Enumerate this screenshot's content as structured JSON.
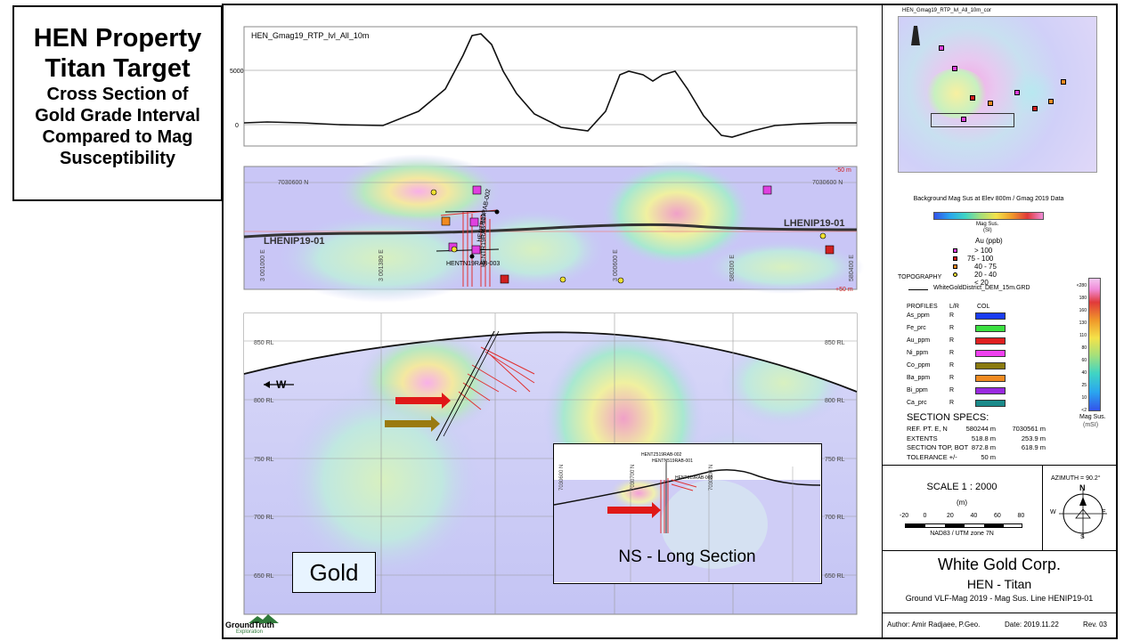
{
  "title": {
    "line1": "HEN Property",
    "line2": "Titan Target",
    "line3": "Cross Section of",
    "line4": "Gold Grade Interval",
    "line5": "Compared to Mag",
    "line6": "Susceptibility"
  },
  "profile_panel": {
    "name": "HEN_Gmag19_RTP_lvl_All_10m",
    "tick_top": "5000",
    "tick_bottom": "0"
  },
  "plan_panel": {
    "line_left": "LHENIP19-01",
    "line_right": "LHENIP19-01",
    "northing_left": "7030600 N",
    "northing_right": "7030600 N",
    "top_right": "-50 m",
    "bottom_right": "+50 m",
    "easting1": "3 001000 E",
    "easting2": "3 001380 E",
    "easting3": "3 000600 E",
    "easting4": "580300 E",
    "easting5": "580400 E",
    "hole1": "HENTR19RAB-002",
    "hole2": "HENTR19RAB-001",
    "hole3": "HENTN19RAB-003"
  },
  "section_panel": {
    "rl_850": "850 RL",
    "rl_800": "800 RL",
    "rl_750": "750 RL",
    "rl_700": "700 RL",
    "rl_650": "650 RL",
    "rl_850r": "850 RL",
    "rl_800r": "800 RL",
    "rl_750r": "750 RL",
    "rl_700r": "700 RL",
    "rl_650r": "650 RL",
    "direction": "W",
    "gold_label": "Gold",
    "inset_label": "NS - Long Section",
    "inset_hole1": "HENTZ519RAB-002",
    "inset_hole2": "HENTN519RAB-001",
    "inset_hole3": "HENT019RAB-003",
    "inset_n1": "7030600 N",
    "inset_n2": "7030700 N",
    "inset_n3": "7030800 N"
  },
  "side_panel": {
    "map_title": "HEN_Gmag19_RTP_lvl_All_10m_cor",
    "bg_caption": "Background Mag Sus at Elev 800m / Gmag 2019 Data",
    "mag_sus": "Mag Sus.",
    "si": "(SI)",
    "au_title": "Au (ppb)",
    "au_classes": [
      {
        "label": "> 100",
        "color": "#e040e0"
      },
      {
        "label": "75 - 100",
        "color": "#d02020"
      },
      {
        "label": "40 - 75",
        "color": "#f08a20"
      },
      {
        "label": "20 - 40",
        "color": "#f0e030"
      },
      {
        "label": "< 20",
        "color": "#ffffff"
      }
    ],
    "topography": "TOPOGRAPHY",
    "dem": "WhiteGoldDistrict_DEM_15m.GRD",
    "profiles_title": "PROFILES",
    "lr": "L/R",
    "col": "COL",
    "profiles": [
      {
        "name": "As_ppm",
        "lr": "R",
        "color": "#1a3cf0"
      },
      {
        "name": "Fe_prc",
        "lr": "R",
        "color": "#3ae040"
      },
      {
        "name": "Au_ppm",
        "lr": "R",
        "color": "#e02020"
      },
      {
        "name": "Ni_ppm",
        "lr": "R",
        "color": "#f040f0"
      },
      {
        "name": "Co_ppm",
        "lr": "R",
        "color": "#8a7a10"
      },
      {
        "name": "Ba_ppm",
        "lr": "R",
        "color": "#f08a20"
      },
      {
        "name": "Bi_ppm",
        "lr": "R",
        "color": "#9a2ae0"
      },
      {
        "name": "Ca_prc",
        "lr": "R",
        "color": "#1a8a8a"
      }
    ],
    "colorbar_title": "Mag Sus.",
    "colorbar_unit": "(mSI)",
    "colorbar_ticks": [
      "<280",
      "180",
      "160",
      "130",
      "110",
      "80",
      "60",
      "40",
      "25",
      "10",
      "<2"
    ],
    "specs_title": "SECTION SPECS:",
    "specs": [
      {
        "k": "REF. PT.  E, N",
        "v1": "580244 m",
        "v2": "7030561 m"
      },
      {
        "k": "EXTENTS",
        "v1": "518.8 m",
        "v2": "253.9 m"
      },
      {
        "k": "SECTION TOP, BOT",
        "v1": "872.8 m",
        "v2": "618.9 m"
      },
      {
        "k": "TOLERANCE  +/-",
        "v1": "50 m",
        "v2": ""
      }
    ],
    "scale": "SCALE  1 : 2000",
    "scale_unit": "(m)",
    "scale_ticks": [
      "-20",
      "0",
      "20",
      "40",
      "60",
      "80"
    ],
    "datum": "NAD83 / UTM zone 7N",
    "azimuth": "AZIMUTH = 90.2°",
    "compass_n": "N",
    "compass_s": "S",
    "compass_e": "E",
    "compass_w": "W",
    "company": "White Gold Corp.",
    "project": "HEN - Titan",
    "subtitle": "Ground VLF-Mag 2019 - Mag Sus. Line HENIP19-01",
    "author": "Author: Amir Radjaee, P.Geo.",
    "date": "Date: 2019.11.22",
    "rev": "Rev. 03"
  },
  "logo": {
    "name": "GroundTruth",
    "sub": "Exploration"
  }
}
